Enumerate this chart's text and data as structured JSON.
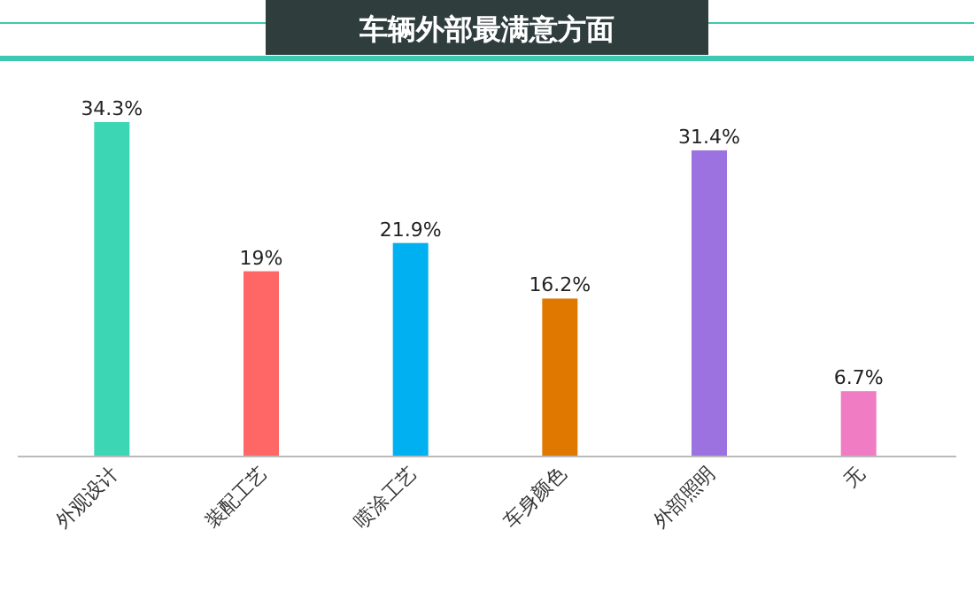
{
  "chart_data": {
    "type": "bar",
    "title": "车辆外部最满意方面",
    "categories": [
      "外观设计",
      "装配工艺",
      "喷涂工艺",
      "车身颜色",
      "外部照明",
      "无"
    ],
    "values": [
      34.3,
      19,
      21.9,
      16.2,
      31.4,
      6.7
    ],
    "colors": [
      "#3dd6b5",
      "#ff6666",
      "#00b0f0",
      "#e07800",
      "#9b72e0",
      "#f07cc4"
    ],
    "value_labels": [
      "34.3%",
      "19%",
      "21.9%",
      "16.2%",
      "31.4%",
      "6.7%"
    ],
    "grid": false
  }
}
